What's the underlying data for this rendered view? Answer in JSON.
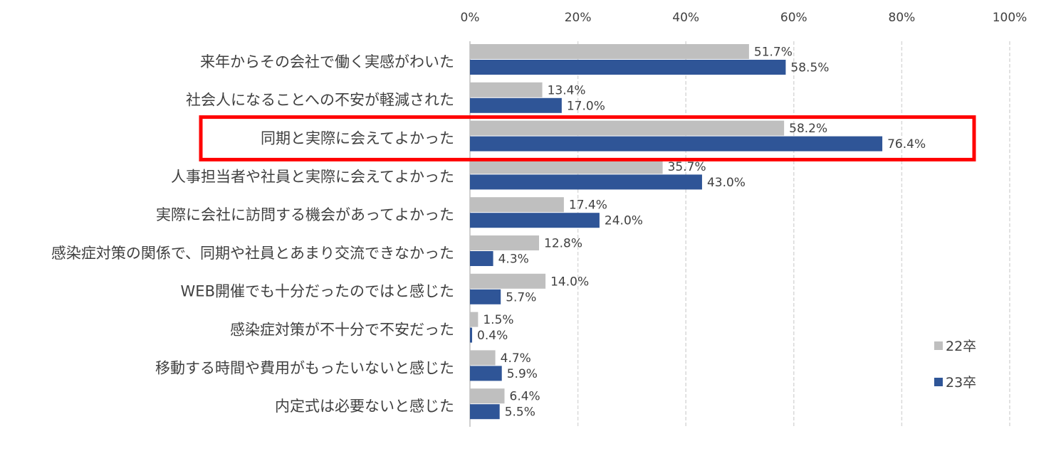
{
  "chart_data": {
    "type": "bar",
    "orientation": "horizontal",
    "xlim": [
      0,
      100
    ],
    "x_ticks": [
      "0%",
      "20%",
      "40%",
      "60%",
      "80%",
      "100%"
    ],
    "x_tick_values": [
      0,
      20,
      40,
      60,
      80,
      100
    ],
    "grid": true,
    "legend_position": "bottom-right",
    "categories": [
      "来年からその会社で働く実感がわいた",
      "社会人になることへの不安が軽減された",
      "同期と実際に会えてよかった",
      "人事担当者や社員と実際に会えてよかった",
      "実際に会社に訪問する機会があってよかった",
      "感染症対策の関係で、同期や社員とあまり交流できなかった",
      "WEB開催でも十分だったのではと感じた",
      "感染症対策が不十分で不安だった",
      "移動する時間や費用がもったいないと感じた",
      "内定式は必要ないと感じた"
    ],
    "series": [
      {
        "name": "22卒",
        "color": "#bfbfbf",
        "values": [
          51.7,
          13.4,
          58.2,
          35.7,
          17.4,
          12.8,
          14.0,
          1.5,
          4.7,
          6.4
        ],
        "labels": [
          "51.7%",
          "13.4%",
          "58.2%",
          "35.7%",
          "17.4%",
          "12.8%",
          "14.0%",
          "1.5%",
          "4.7%",
          "6.4%"
        ]
      },
      {
        "name": "23卒",
        "color": "#2f5597",
        "values": [
          58.5,
          17.0,
          76.4,
          43.0,
          24.0,
          4.3,
          5.7,
          0.4,
          5.9,
          5.5
        ],
        "labels": [
          "58.5%",
          "17.0%",
          "76.4%",
          "43.0%",
          "24.0%",
          "4.3%",
          "5.7%",
          "0.4%",
          "5.9%",
          "5.5%"
        ]
      }
    ],
    "highlighted_category_index": 2,
    "highlight_color": "#ff0000"
  }
}
